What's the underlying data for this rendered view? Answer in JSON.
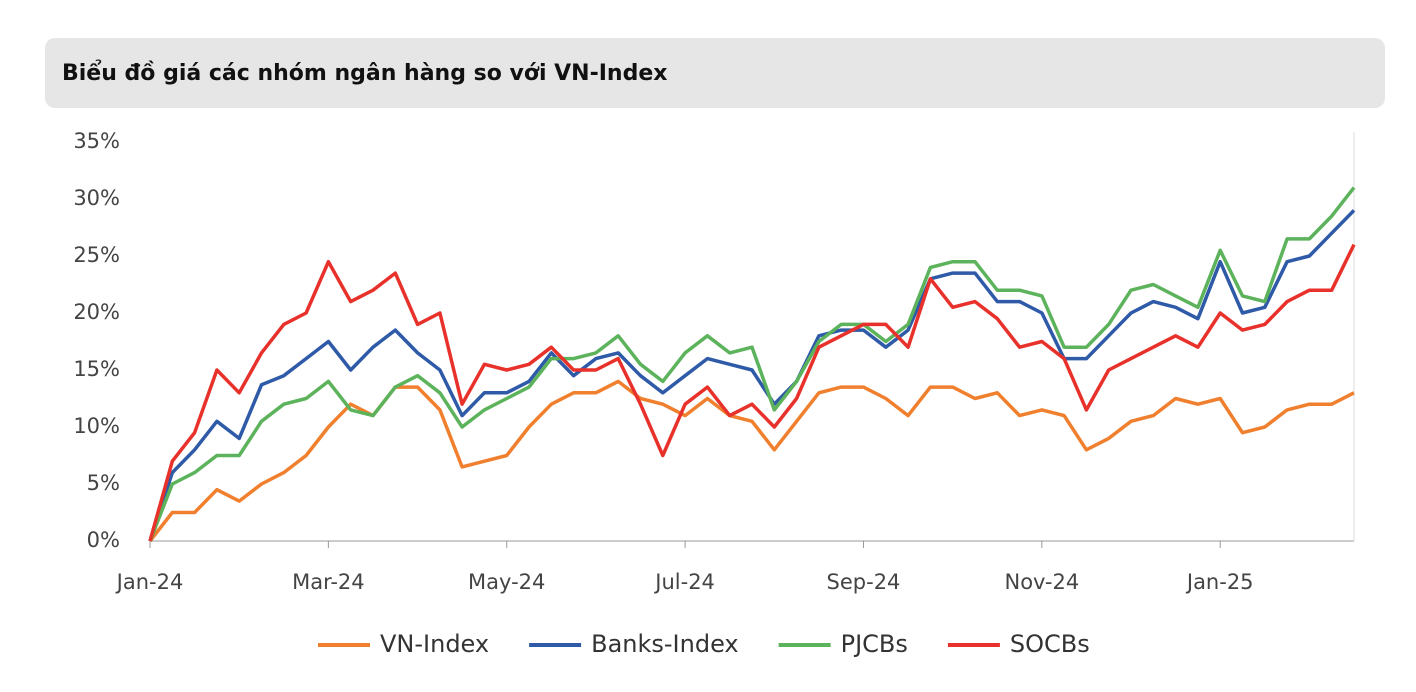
{
  "chart_data": {
    "type": "line",
    "title": "Biểu đồ giá các nhóm ngân hàng so với VN-Index",
    "categories": [
      "Jan-24",
      null,
      null,
      null,
      null,
      null,
      null,
      null,
      "Mar-24",
      null,
      null,
      null,
      null,
      null,
      null,
      null,
      "May-24",
      null,
      null,
      null,
      null,
      null,
      null,
      null,
      "Jul-24",
      null,
      null,
      null,
      null,
      null,
      null,
      null,
      "Sep-24",
      null,
      null,
      null,
      null,
      null,
      null,
      null,
      "Nov-24",
      null,
      null,
      null,
      null,
      null,
      null,
      null,
      "Jan-25",
      null,
      null,
      null,
      null,
      null,
      null
    ],
    "series": [
      {
        "name": "VN-Index",
        "color": "#f07f2e",
        "values": [
          0,
          2.5,
          2.5,
          4.5,
          3.5,
          5,
          6,
          7.5,
          10,
          12,
          11,
          13.5,
          13.5,
          11.5,
          6.5,
          7,
          7.5,
          10,
          12,
          13,
          13,
          14,
          12.5,
          12,
          11,
          12.5,
          11,
          10.5,
          8,
          10.5,
          13,
          13.5,
          13.5,
          12.5,
          11,
          13.5,
          13.5,
          12.5,
          13,
          11,
          11.5,
          11,
          8,
          9,
          10.5,
          11,
          12.5,
          12,
          12.5,
          9.5,
          10,
          11.5,
          12,
          12,
          13
        ]
      },
      {
        "name": "Banks-Index",
        "color": "#2e5aa8",
        "values": [
          0,
          6,
          8,
          10.5,
          9,
          13.7,
          14.5,
          16,
          17.5,
          15,
          17,
          18.5,
          16.5,
          15,
          11,
          13,
          13,
          14,
          16.5,
          14.5,
          16,
          16.5,
          14.5,
          13,
          14.5,
          16,
          15.5,
          15,
          12,
          14,
          18,
          18.5,
          18.5,
          17,
          18.5,
          23,
          23.5,
          23.5,
          21,
          21,
          20,
          16,
          16,
          18,
          20,
          21,
          20.5,
          19.5,
          24.5,
          20,
          20.5,
          24.5,
          25,
          27,
          29
        ]
      },
      {
        "name": "PJCBs",
        "color": "#5cb35c",
        "values": [
          0,
          5,
          6,
          7.5,
          7.5,
          10.5,
          12,
          12.5,
          14,
          11.5,
          11,
          13.5,
          14.5,
          13,
          10,
          11.5,
          12.5,
          13.5,
          16,
          16,
          16.5,
          18,
          15.5,
          14,
          16.5,
          18,
          16.5,
          17,
          11.5,
          14,
          17.5,
          19,
          19,
          17.5,
          19,
          24,
          24.5,
          24.5,
          22,
          22,
          21.5,
          17,
          17,
          19,
          22,
          22.5,
          21.5,
          20.5,
          25.5,
          21.5,
          21,
          26.5,
          26.5,
          28.5,
          31
        ]
      },
      {
        "name": "SOCBs",
        "color": "#e8312a",
        "values": [
          0,
          7,
          9.5,
          15,
          13,
          16.5,
          19,
          20,
          24.5,
          21,
          22,
          23.5,
          19,
          20,
          12,
          15.5,
          15,
          15.5,
          17,
          15,
          15,
          16,
          12,
          7.5,
          12,
          13.5,
          11,
          12,
          10,
          12.5,
          17,
          18,
          19,
          19,
          17,
          23,
          20.5,
          21,
          19.5,
          17,
          17.5,
          16,
          11.5,
          15,
          16,
          17,
          18,
          17,
          20,
          18.5,
          19,
          21,
          22,
          22,
          26
        ]
      }
    ],
    "ylim": [
      0,
      35
    ],
    "yticks": [
      {
        "value": 0,
        "label": "0%"
      },
      {
        "value": 5,
        "label": "5%"
      },
      {
        "value": 10,
        "label": "10%"
      },
      {
        "value": 15,
        "label": "15%"
      },
      {
        "value": 20,
        "label": "20%"
      },
      {
        "value": 25,
        "label": "25%"
      },
      {
        "value": 30,
        "label": "30%"
      },
      {
        "value": 35,
        "label": "35%"
      }
    ],
    "grid": false,
    "legend": "bottom"
  }
}
